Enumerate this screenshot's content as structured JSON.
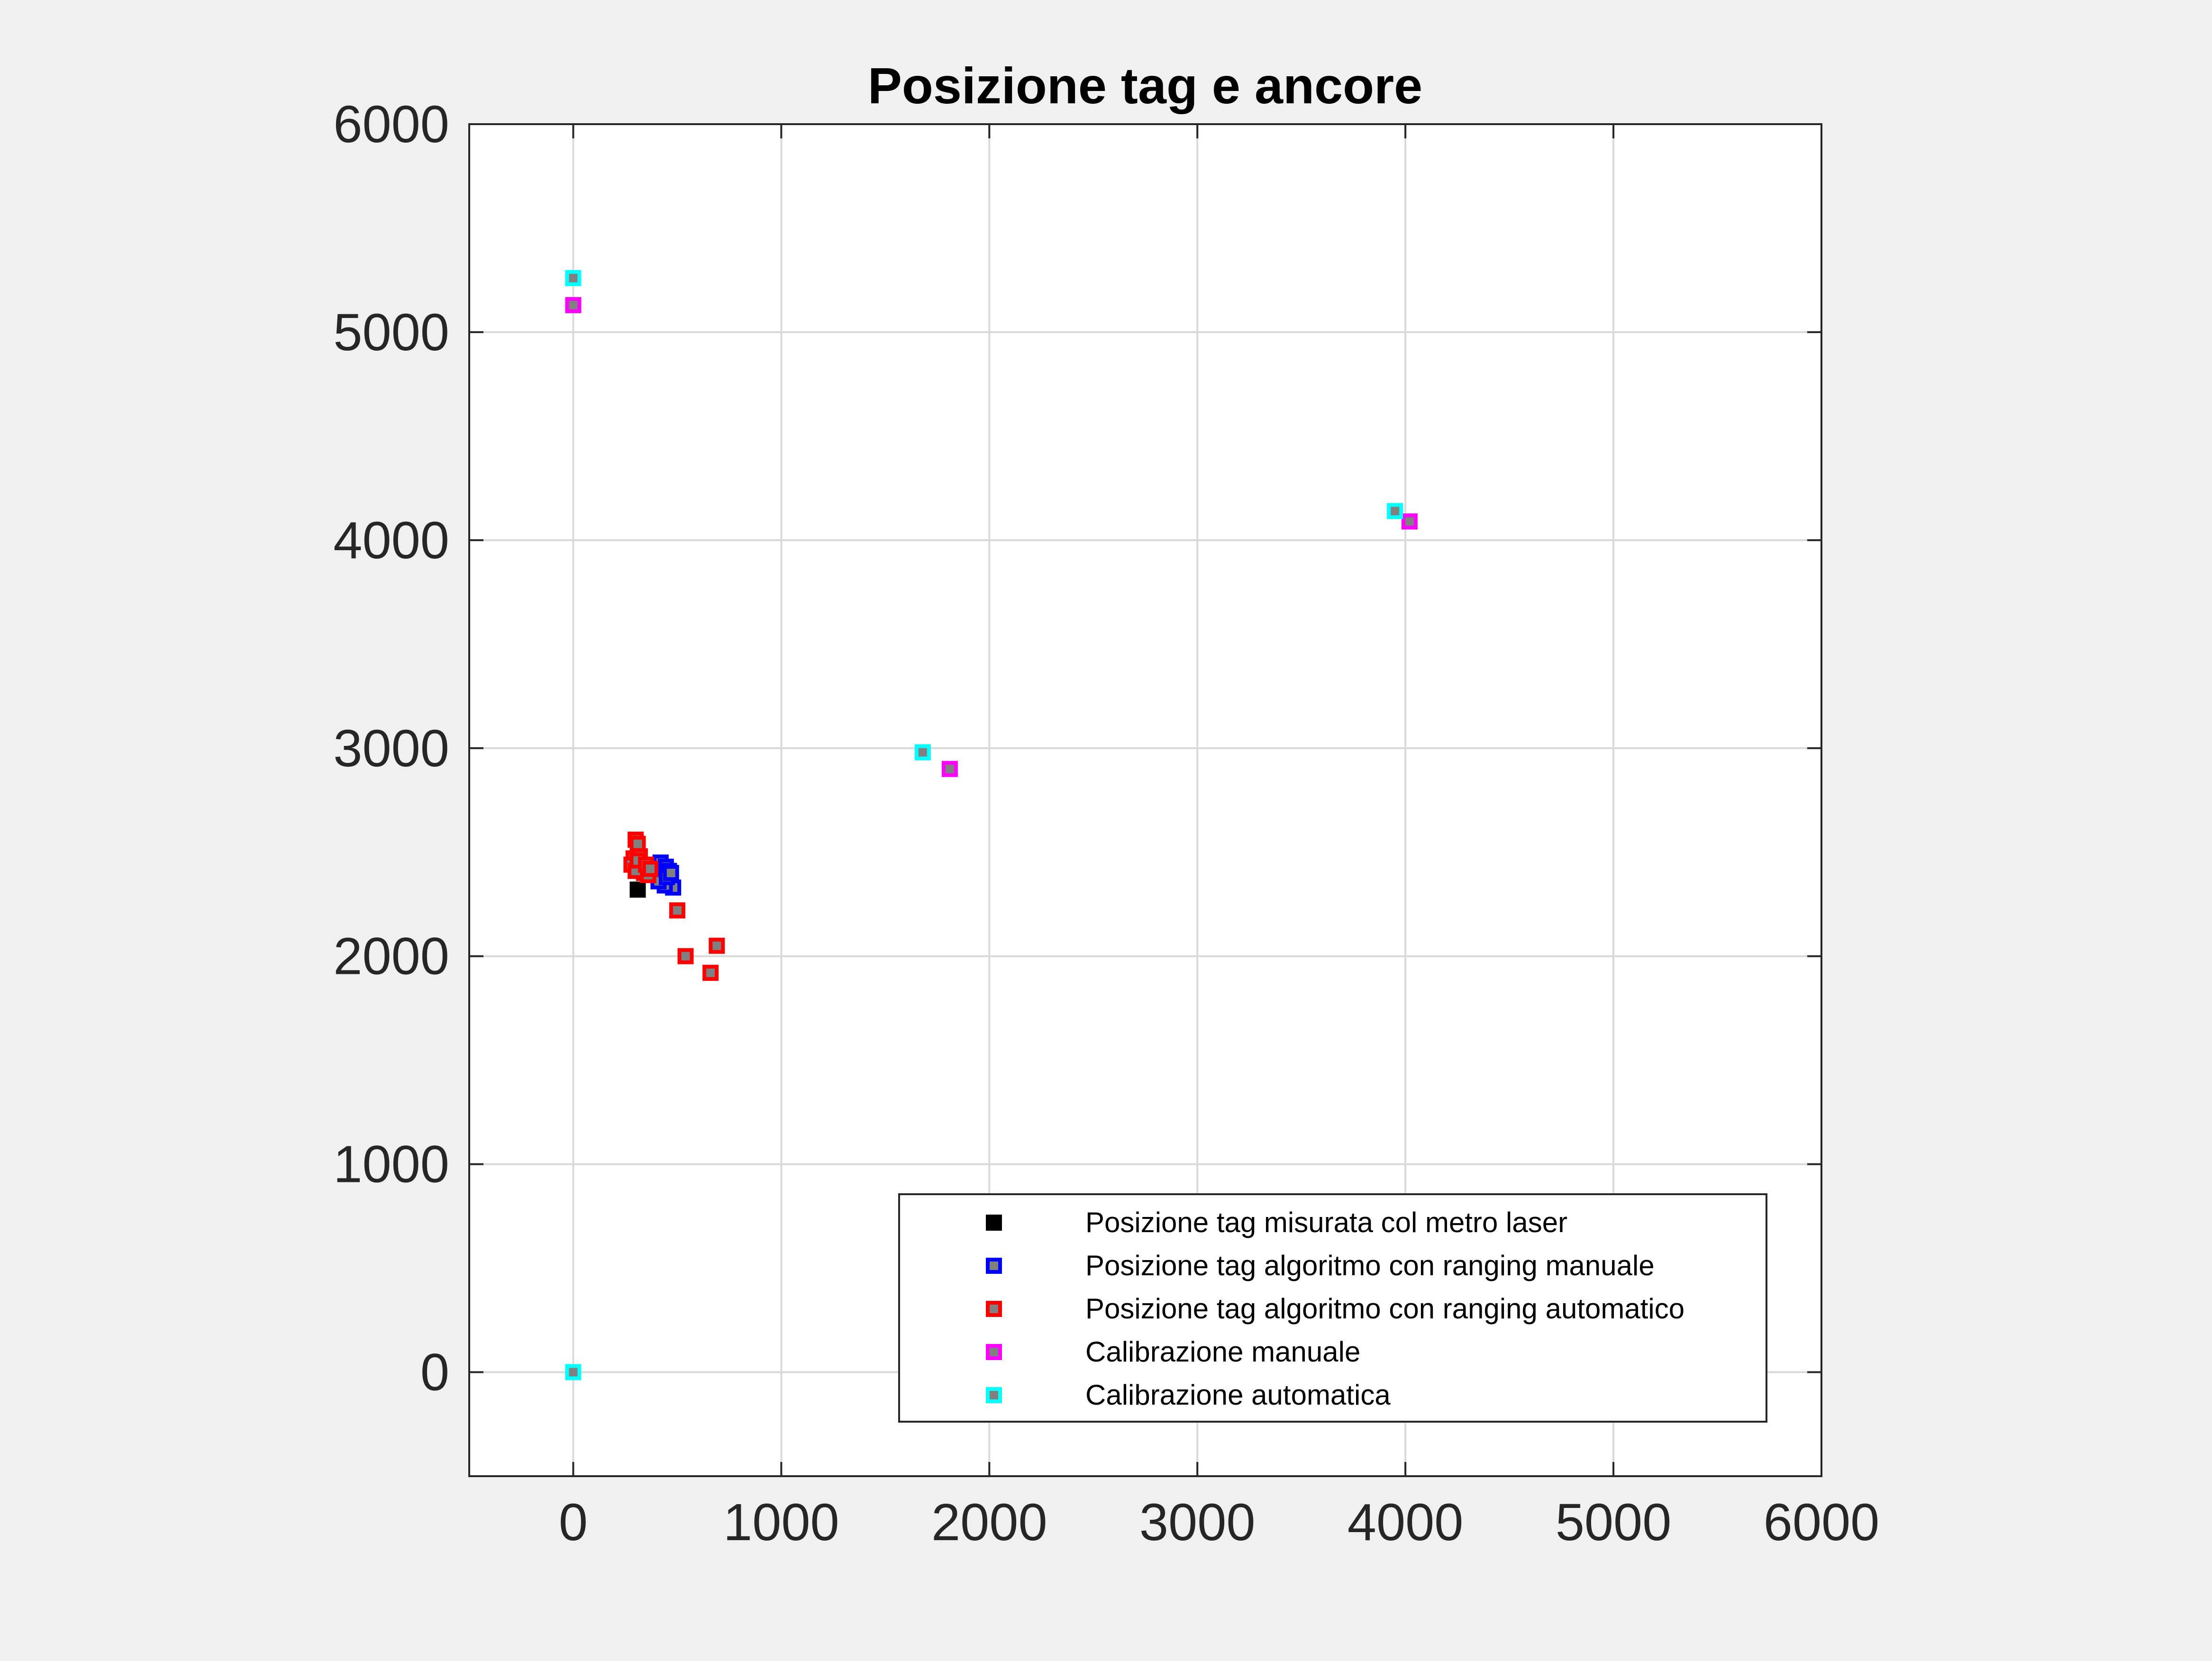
{
  "chart_data": {
    "type": "scatter",
    "title": "Posizione tag e ancore",
    "xlabel": "",
    "ylabel": "",
    "xlim": [
      -500,
      6000
    ],
    "ylim": [
      -500,
      6000
    ],
    "xticks": [
      0,
      1000,
      2000,
      3000,
      4000,
      5000,
      6000
    ],
    "yticks": [
      0,
      1000,
      2000,
      3000,
      4000,
      5000,
      6000
    ],
    "xtick_labels": [
      "0",
      "1000",
      "2000",
      "3000",
      "4000",
      "5000",
      "6000"
    ],
    "ytick_labels": [
      "0",
      "1000",
      "2000",
      "3000",
      "4000",
      "5000",
      "6000"
    ],
    "grid": true,
    "legend_position": "bottom-right",
    "series": [
      {
        "name": "Posizione tag misurata col metro laser",
        "color": "#000000",
        "fill": "#000000",
        "points": [
          [
            310,
            2320
          ]
        ]
      },
      {
        "name": "Posizione tag algoritmo con ranging manuale",
        "color": "#0000ff",
        "fill": "#808080",
        "points": [
          [
            390,
            2440
          ],
          [
            420,
            2450
          ],
          [
            445,
            2430
          ],
          [
            460,
            2410
          ],
          [
            400,
            2390
          ],
          [
            430,
            2370
          ],
          [
            465,
            2350
          ],
          [
            480,
            2330
          ],
          [
            440,
            2340
          ],
          [
            410,
            2360
          ],
          [
            450,
            2380
          ],
          [
            470,
            2400
          ]
        ]
      },
      {
        "name": "Posizione tag algoritmo con ranging automatico",
        "color": "#ff0000",
        "fill": "#808080",
        "points": [
          [
            300,
            2560
          ],
          [
            310,
            2540
          ],
          [
            290,
            2470
          ],
          [
            320,
            2480
          ],
          [
            280,
            2440
          ],
          [
            330,
            2420
          ],
          [
            340,
            2400
          ],
          [
            300,
            2410
          ],
          [
            360,
            2390
          ],
          [
            310,
            2460
          ],
          [
            350,
            2440
          ],
          [
            370,
            2420
          ],
          [
            500,
            2220
          ],
          [
            540,
            2000
          ],
          [
            690,
            2050
          ],
          [
            660,
            1920
          ]
        ]
      },
      {
        "name": "Calibrazione manuale",
        "color": "#ff00ff",
        "fill": "#808080",
        "points": [
          [
            0,
            5130
          ],
          [
            1810,
            2900
          ],
          [
            4020,
            4090
          ]
        ]
      },
      {
        "name": "Calibrazione automatica",
        "color": "#00ffff",
        "fill": "#808080",
        "points": [
          [
            0,
            0
          ],
          [
            0,
            5260
          ],
          [
            1680,
            2980
          ],
          [
            3950,
            4140
          ]
        ]
      }
    ]
  }
}
